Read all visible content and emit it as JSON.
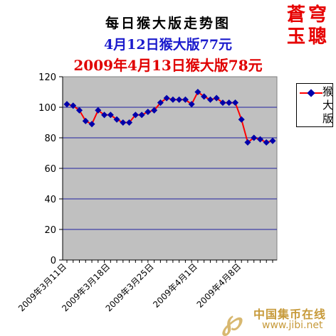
{
  "header": {
    "title": "每日猴大版走势图",
    "line2": "4月12日猴大版77元",
    "line3": "2009年4月13日猴大版78元",
    "stamp": "蒼穹玉聰"
  },
  "watermark": {
    "logo": "JB",
    "site_name": "中国集币在线",
    "url": "www.jibi.net"
  },
  "colors": {
    "plot_bg": "#c0c0c0",
    "line": "#ff0000",
    "marker": "#0000aa",
    "grid": "#1f1fa0"
  },
  "chart_data": {
    "type": "line",
    "title": "每日猴大版走势图",
    "xlabel": "",
    "ylabel": "",
    "ylim": [
      0,
      120
    ],
    "yticks": [
      "0",
      "20",
      "40",
      "60",
      "80",
      "100",
      "120"
    ],
    "grid": true,
    "legend_position": "right",
    "x": [
      "2009年3月11日",
      "2009年3月12日",
      "2009年3月13日",
      "2009年3月14日",
      "2009年3月15日",
      "2009年3月16日",
      "2009年3月17日",
      "2009年3月18日",
      "2009年3月19日",
      "2009年3月20日",
      "2009年3月21日",
      "2009年3月22日",
      "2009年3月23日",
      "2009年3月24日",
      "2009年3月25日",
      "2009年3月26日",
      "2009年3月27日",
      "2009年3月28日",
      "2009年3月29日",
      "2009年3月30日",
      "2009年3月31日",
      "2009年4月1日",
      "2009年4月2日",
      "2009年4月3日",
      "2009年4月4日",
      "2009年4月5日",
      "2009年4月6日",
      "2009年4月7日",
      "2009年4月8日",
      "2009年4月9日",
      "2009年4月10日",
      "2009年4月11日",
      "2009年4月12日",
      "2009年4月13日"
    ],
    "x_tick_labels": [
      {
        "index": 0,
        "label": "2009年3月11日"
      },
      {
        "index": 7,
        "label": "2009年3月18日"
      },
      {
        "index": 14,
        "label": "2009年3月25日"
      },
      {
        "index": 21,
        "label": "2009年4月1日"
      },
      {
        "index": 28,
        "label": "2009年4月8日"
      }
    ],
    "series": [
      {
        "name": "猴大版",
        "values": [
          102,
          101,
          98,
          91,
          89,
          98,
          95,
          95,
          92,
          90,
          90,
          95,
          95,
          97,
          98,
          103,
          106,
          105,
          105,
          105,
          102,
          110,
          107,
          105,
          106,
          103,
          103,
          103,
          92,
          77,
          80,
          79,
          77,
          78
        ]
      }
    ]
  }
}
